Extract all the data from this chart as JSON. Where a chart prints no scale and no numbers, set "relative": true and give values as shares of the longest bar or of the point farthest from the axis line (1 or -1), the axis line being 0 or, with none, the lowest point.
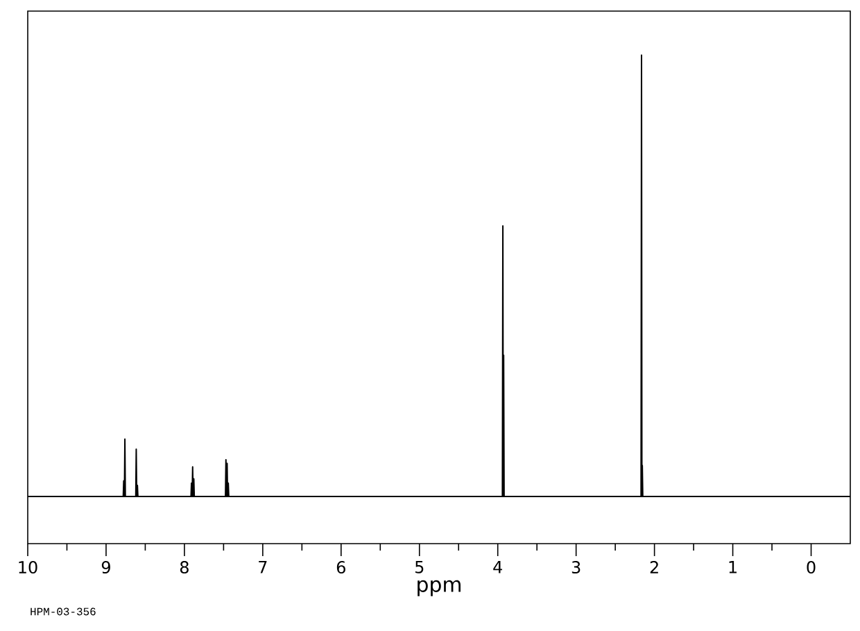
{
  "chart_data": {
    "type": "line",
    "relative": true,
    "xlabel": "ppm",
    "annotations": [
      "HPM-03-356"
    ],
    "color": "#000000",
    "x": [
      10,
      8.781,
      8.775,
      8.769,
      8.766,
      8.76,
      8.754,
      8.621,
      8.615,
      8.609,
      8.606,
      8.6,
      8.594,
      7.916,
      7.91,
      7.904,
      7.901,
      7.895,
      7.889,
      7.886,
      7.88,
      7.874,
      7.476,
      7.47,
      7.464,
      7.461,
      7.455,
      7.449,
      7.446,
      7.44,
      7.434,
      3.941,
      3.935,
      3.93,
      3.925,
      3.919,
      2.171,
      2.165,
      2.16,
      2.155,
      2.149,
      -0.5
    ],
    "values": [
      0,
      0,
      0.035,
      0,
      0,
      0.13,
      0,
      0,
      0.107,
      0,
      0,
      0.025,
      0,
      0,
      0.03,
      0,
      0,
      0.067,
      0,
      0,
      0.04,
      0,
      0,
      0.083,
      0,
      0,
      0.075,
      0,
      0,
      0.03,
      0,
      0,
      0.613,
      0,
      0.32,
      0,
      0,
      1,
      0,
      0.07,
      0,
      0
    ],
    "xlim": [
      10,
      -0.5
    ],
    "xticks": [
      10,
      9,
      8,
      7,
      6,
      5,
      4,
      3,
      2,
      1,
      0
    ]
  }
}
